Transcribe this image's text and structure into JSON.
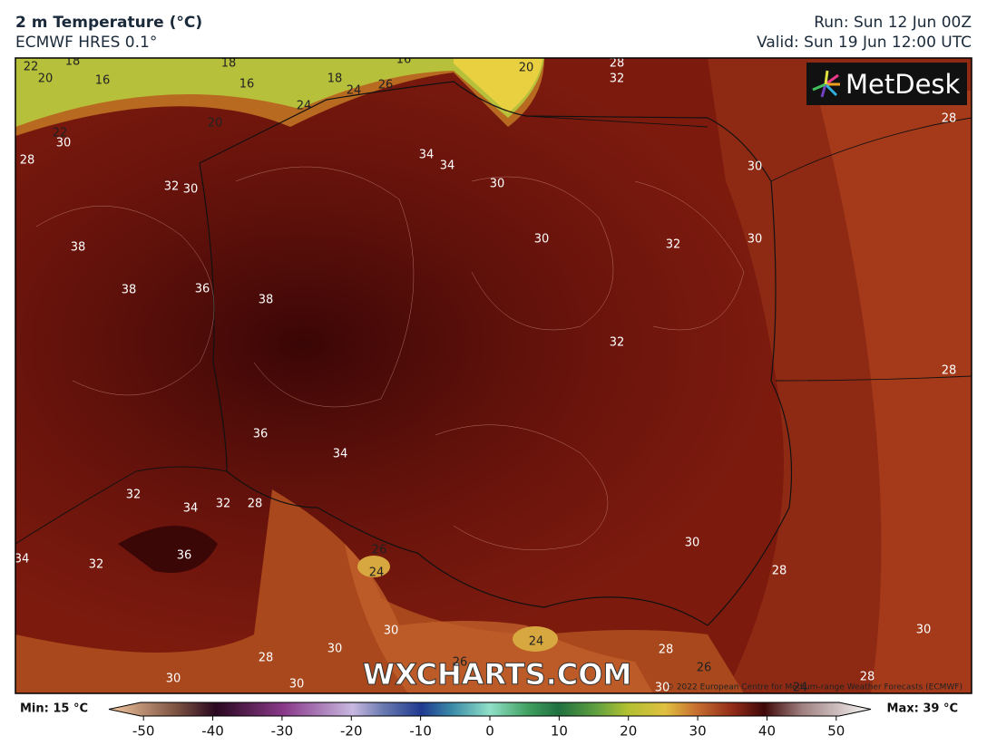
{
  "header": {
    "title": "2 m Temperature (°C)",
    "model": "ECMWF HRES 0.1°",
    "run": "Run: Sun 12 Jun 00Z",
    "valid": "Valid: Sun 19 Jun 12:00 UTC"
  },
  "map": {
    "logo": "MetDesk",
    "watermark": "WXCHARTS.COM",
    "copyright": "© 2022 European Centre for Medium-range Weather Forecasts (ECMWF)",
    "contour_labels": [
      22,
      18,
      20,
      16,
      18,
      16,
      16,
      20,
      28,
      32,
      18,
      24,
      26,
      24,
      20,
      30,
      22,
      28,
      34,
      34,
      30,
      30,
      28,
      32,
      30,
      30,
      32,
      30,
      38,
      38,
      36,
      38,
      32,
      28,
      36,
      34,
      32,
      34,
      32,
      28,
      36,
      32,
      34,
      26,
      24,
      30,
      28,
      30,
      30,
      30,
      28,
      24,
      26,
      28,
      26,
      30,
      30,
      30,
      24,
      28
    ]
  },
  "colorbar": {
    "min_label": "Min: 15 °C",
    "max_label": "Max: 39 °C",
    "range": [
      -55,
      55
    ],
    "ticks": [
      -50,
      -40,
      -30,
      -20,
      -10,
      0,
      10,
      20,
      30,
      40,
      50
    ]
  }
}
